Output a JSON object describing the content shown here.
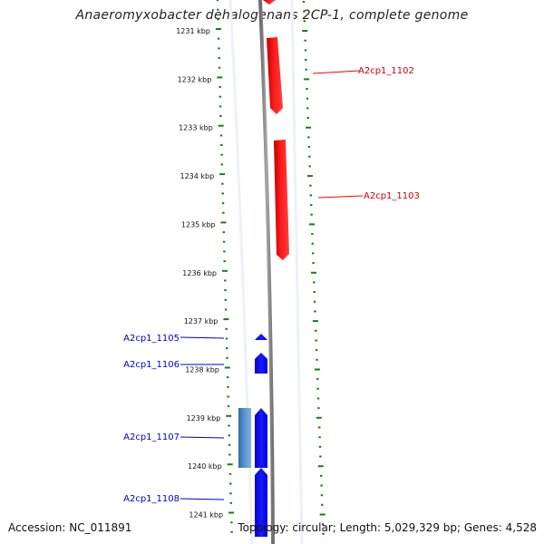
{
  "title": "Anaeromyxobacter dehalogenans 2CP-1, complete genome",
  "footer": {
    "accession": "Accession: NC_011891",
    "summary": "Topology: circular; Length: 5,029,329 bp; Genes: 4,528"
  },
  "ruler": {
    "unit_suffix": " kbp",
    "labels": [
      "1231 kbp",
      "1232 kbp",
      "1233 kbp",
      "1234 kbp",
      "1235 kbp",
      "1236 kbp",
      "1237 kbp",
      "1238 kbp",
      "1239 kbp",
      "1240 kbp",
      "1241 kbp"
    ]
  },
  "genes": [
    {
      "name": "A2cp1_1102",
      "strand": "forward",
      "color": "#ff0000"
    },
    {
      "name": "A2cp1_1103",
      "strand": "forward",
      "color": "#ff0000"
    },
    {
      "name": "A2cp1_1105",
      "strand": "reverse",
      "color": "#0000ff"
    },
    {
      "name": "A2cp1_1106",
      "strand": "reverse",
      "color": "#0000ff"
    },
    {
      "name": "A2cp1_1107",
      "strand": "reverse",
      "color": "#0000ff"
    },
    {
      "name": "A2cp1_1108",
      "strand": "reverse",
      "color": "#0000ff"
    }
  ],
  "colors": {
    "forward": "#ff0000",
    "reverse": "#0000ff",
    "tick": "#1a7a1a",
    "backbone": "#8a8a8a",
    "extra_feature": "#4a86c0"
  }
}
